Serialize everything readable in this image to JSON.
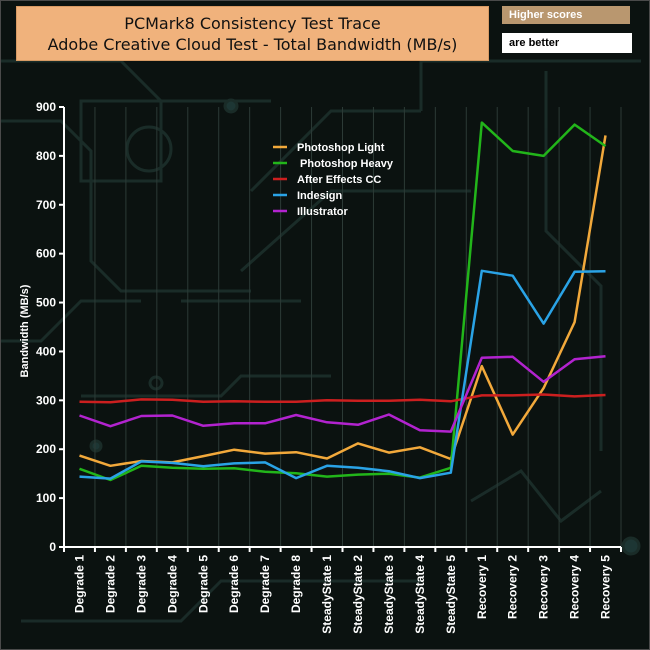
{
  "title": {
    "line1": "PCMark8 Consistency Test Trace",
    "line2": "Adobe Creative Cloud Test - Total Bandwidth (MB/s)"
  },
  "note": {
    "line1": "Higher scores",
    "line2": "are better"
  },
  "colors": {
    "background": "#0b1210",
    "axis": "#ffffff",
    "grid": "#2c3a36"
  },
  "chart_data": {
    "type": "line",
    "title": "PCMark8 Consistency Test Trace - Adobe Creative Cloud Test - Total Bandwidth (MB/s)",
    "xlabel": "",
    "ylabel": "Bandwidth (MB/s)",
    "ylim": [
      0,
      900
    ],
    "yticks": [
      0,
      100,
      200,
      300,
      400,
      500,
      600,
      700,
      800,
      900
    ],
    "grid": "vertical",
    "legend_position": "top-center",
    "categories": [
      "Degrade 1",
      "Degrade 2",
      "Degrade 3",
      "Degrade 4",
      "Degrade 5",
      "Degrade 6",
      "Degrade 7",
      "Degrade 8",
      "SteadyState 1",
      "SteadyState 2",
      "SteadyState 3",
      "SteadyState 4",
      "SteadyState 5",
      "Recovery 1",
      "Recovery 2",
      "Recovery 3",
      "Recovery 4",
      "Recovery 5"
    ],
    "series": [
      {
        "name": "Photoshop Light",
        "color": "#f2a93b",
        "values": [
          187,
          166,
          176,
          173,
          186,
          199,
          191,
          194,
          181,
          212,
          193,
          204,
          180,
          370,
          230,
          325,
          460,
          842
        ]
      },
      {
        "name": " Photoshop Heavy",
        "color": "#22b51a",
        "values": [
          160,
          137,
          166,
          162,
          160,
          161,
          154,
          151,
          144,
          148,
          150,
          142,
          162,
          868,
          810,
          800,
          864,
          820
        ]
      },
      {
        "name": "After Effects CC",
        "color": "#cc1f1f",
        "values": [
          297,
          296,
          302,
          301,
          297,
          298,
          297,
          297,
          300,
          299,
          299,
          301,
          298,
          310,
          310,
          312,
          308,
          311
        ]
      },
      {
        "name": "Indesign",
        "color": "#2aa3e6",
        "values": [
          144,
          140,
          175,
          172,
          165,
          171,
          173,
          141,
          166,
          162,
          155,
          141,
          152,
          565,
          555,
          457,
          563,
          564
        ]
      },
      {
        "name": "Illustrator",
        "color": "#b223cf",
        "values": [
          269,
          247,
          268,
          269,
          248,
          253,
          253,
          270,
          255,
          250,
          271,
          239,
          236,
          387,
          389,
          338,
          384,
          390
        ]
      }
    ]
  }
}
